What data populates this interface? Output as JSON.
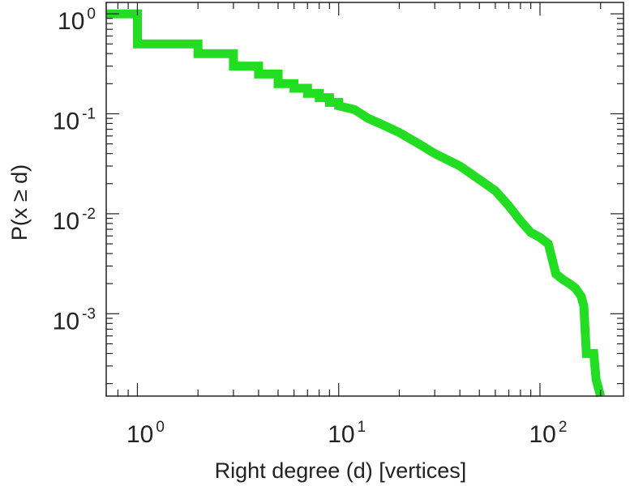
{
  "chart_data": {
    "type": "line",
    "subtype": "step-ccdf",
    "xlabel": "Right degree (d) [vertices]",
    "ylabel": "P(x ≥ d)",
    "xscale": "log",
    "yscale": "log",
    "xlim": [
      0.7,
      260
    ],
    "ylim": [
      0.00015,
      1.3
    ],
    "grid": false,
    "minor_ticks": true,
    "line_color": "#22dd22",
    "x_ticks": [
      {
        "base": "10",
        "exp": "0",
        "value": 1
      },
      {
        "base": "10",
        "exp": "1",
        "value": 10
      },
      {
        "base": "10",
        "exp": "2",
        "value": 100
      }
    ],
    "y_ticks": [
      {
        "base": "10",
        "exp": "0",
        "value": 1
      },
      {
        "base": "10",
        "exp": "-1",
        "value": 0.1
      },
      {
        "base": "10",
        "exp": "-2",
        "value": 0.01
      },
      {
        "base": "10",
        "exp": "-3",
        "value": 0.001
      }
    ],
    "series": [
      {
        "points": [
          [
            0.7,
            1.0
          ],
          [
            1,
            1.0
          ],
          [
            1,
            0.5
          ],
          [
            2,
            0.5
          ],
          [
            2,
            0.4
          ],
          [
            3,
            0.4
          ],
          [
            3,
            0.3
          ],
          [
            4,
            0.3
          ],
          [
            4,
            0.25
          ],
          [
            5,
            0.25
          ],
          [
            5,
            0.2
          ],
          [
            6,
            0.2
          ],
          [
            6,
            0.18
          ],
          [
            7,
            0.18
          ],
          [
            7,
            0.16
          ],
          [
            8,
            0.16
          ],
          [
            8,
            0.145
          ],
          [
            9,
            0.145
          ],
          [
            9,
            0.13
          ],
          [
            10,
            0.13
          ],
          [
            10,
            0.12
          ],
          [
            12,
            0.11
          ],
          [
            14,
            0.09
          ],
          [
            16,
            0.08
          ],
          [
            20,
            0.065
          ],
          [
            25,
            0.05
          ],
          [
            30,
            0.04
          ],
          [
            40,
            0.03
          ],
          [
            50,
            0.022
          ],
          [
            60,
            0.017
          ],
          [
            70,
            0.012
          ],
          [
            80,
            0.0085
          ],
          [
            90,
            0.0065
          ],
          [
            100,
            0.0058
          ],
          [
            110,
            0.005
          ],
          [
            120,
            0.0025
          ],
          [
            130,
            0.0022
          ],
          [
            140,
            0.002
          ],
          [
            150,
            0.0018
          ],
          [
            160,
            0.0015
          ],
          [
            165,
            0.0012
          ],
          [
            170,
            0.0004
          ],
          [
            185,
            0.0004
          ],
          [
            190,
            0.00022
          ],
          [
            200,
            0.00015
          ]
        ]
      }
    ]
  }
}
